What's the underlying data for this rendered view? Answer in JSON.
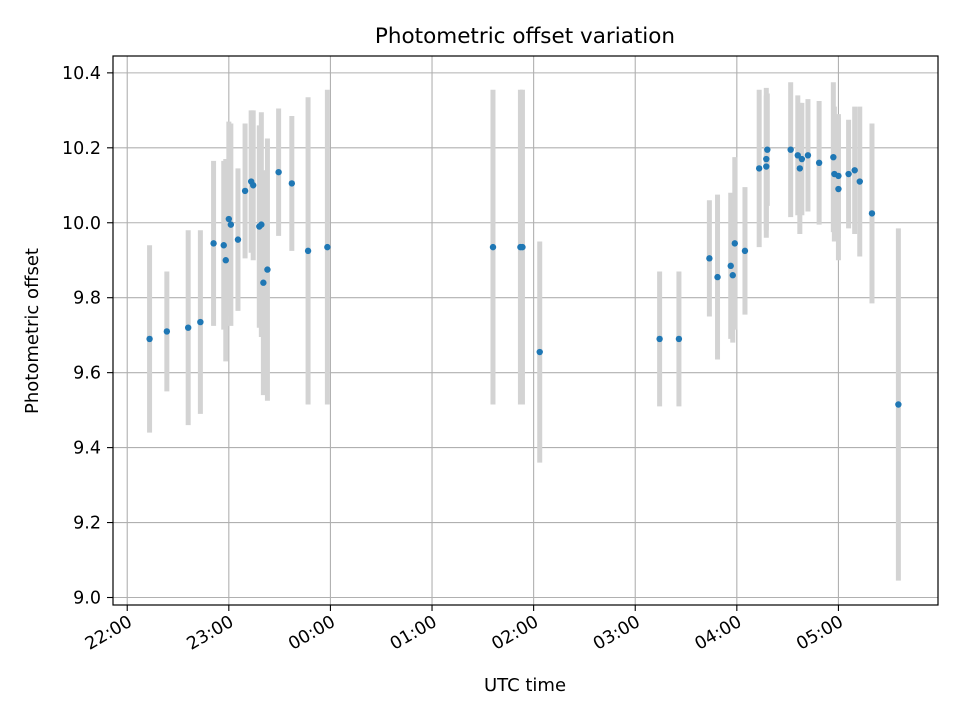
{
  "chart_data": {
    "type": "scatter",
    "title": "Photometric offset variation",
    "xlabel": "UTC time",
    "ylabel": "Photometric offset",
    "x_unit": "hours since 00:00 UTC (negative = previous day)",
    "xlim": [
      -2.14,
      5.98
    ],
    "ylim": [
      8.98,
      10.445
    ],
    "grid": true,
    "x_ticks": [
      {
        "value": -2,
        "label": "22:00"
      },
      {
        "value": -1,
        "label": "23:00"
      },
      {
        "value": 0,
        "label": "00:00"
      },
      {
        "value": 1,
        "label": "01:00"
      },
      {
        "value": 2,
        "label": "02:00"
      },
      {
        "value": 3,
        "label": "03:00"
      },
      {
        "value": 4,
        "label": "04:00"
      },
      {
        "value": 5,
        "label": "05:00"
      }
    ],
    "y_ticks": [
      {
        "value": 9.0,
        "label": "9.0"
      },
      {
        "value": 9.2,
        "label": "9.2"
      },
      {
        "value": 9.4,
        "label": "9.4"
      },
      {
        "value": 9.6,
        "label": "9.6"
      },
      {
        "value": 9.8,
        "label": "9.8"
      },
      {
        "value": 10.0,
        "label": "10.0"
      },
      {
        "value": 10.2,
        "label": "10.2"
      },
      {
        "value": 10.4,
        "label": "10.4"
      }
    ],
    "colors": {
      "point": "#1f77b4",
      "errorbar": "#d3d3d3",
      "grid": "#b0b0b0"
    },
    "points": [
      {
        "x": -1.78,
        "y": 9.69,
        "err": 0.25
      },
      {
        "x": -1.61,
        "y": 9.71,
        "err": 0.16
      },
      {
        "x": -1.4,
        "y": 9.72,
        "err": 0.26
      },
      {
        "x": -1.28,
        "y": 9.735,
        "err": 0.245
      },
      {
        "x": -1.15,
        "y": 9.945,
        "err": 0.22
      },
      {
        "x": -1.05,
        "y": 9.94,
        "err": 0.225
      },
      {
        "x": -1.03,
        "y": 9.9,
        "err": 0.27
      },
      {
        "x": -1.0,
        "y": 10.01,
        "err": 0.26
      },
      {
        "x": -0.98,
        "y": 9.995,
        "err": 0.27
      },
      {
        "x": -0.91,
        "y": 9.955,
        "err": 0.19
      },
      {
        "x": -0.84,
        "y": 10.085,
        "err": 0.18
      },
      {
        "x": -0.78,
        "y": 10.11,
        "err": 0.19
      },
      {
        "x": -0.76,
        "y": 10.1,
        "err": 0.2
      },
      {
        "x": -0.7,
        "y": 9.99,
        "err": 0.27
      },
      {
        "x": -0.68,
        "y": 9.995,
        "err": 0.3
      },
      {
        "x": -0.66,
        "y": 9.84,
        "err": 0.3
      },
      {
        "x": -0.62,
        "y": 9.875,
        "err": 0.35
      },
      {
        "x": -0.51,
        "y": 10.135,
        "err": 0.17
      },
      {
        "x": -0.38,
        "y": 10.105,
        "err": 0.18
      },
      {
        "x": -0.22,
        "y": 9.925,
        "err": 0.41
      },
      {
        "x": -0.03,
        "y": 9.935,
        "err": 0.42
      },
      {
        "x": 1.6,
        "y": 9.935,
        "err": 0.42
      },
      {
        "x": 1.87,
        "y": 9.935,
        "err": 0.42
      },
      {
        "x": 1.89,
        "y": 9.935,
        "err": 0.42
      },
      {
        "x": 2.06,
        "y": 9.655,
        "err": 0.295
      },
      {
        "x": 3.24,
        "y": 9.69,
        "err": 0.18
      },
      {
        "x": 3.43,
        "y": 9.69,
        "err": 0.18
      },
      {
        "x": 3.73,
        "y": 9.905,
        "err": 0.155
      },
      {
        "x": 3.81,
        "y": 9.855,
        "err": 0.22
      },
      {
        "x": 3.94,
        "y": 9.885,
        "err": 0.195
      },
      {
        "x": 3.96,
        "y": 9.86,
        "err": 0.18
      },
      {
        "x": 3.98,
        "y": 9.945,
        "err": 0.23
      },
      {
        "x": 4.08,
        "y": 9.925,
        "err": 0.17
      },
      {
        "x": 4.22,
        "y": 10.145,
        "err": 0.21
      },
      {
        "x": 4.29,
        "y": 10.15,
        "err": 0.19
      },
      {
        "x": 4.29,
        "y": 10.17,
        "err": 0.19
      },
      {
        "x": 4.3,
        "y": 10.195,
        "err": 0.15
      },
      {
        "x": 4.53,
        "y": 10.195,
        "err": 0.18
      },
      {
        "x": 4.6,
        "y": 10.18,
        "err": 0.16
      },
      {
        "x": 4.62,
        "y": 10.145,
        "err": 0.175
      },
      {
        "x": 4.64,
        "y": 10.17,
        "err": 0.15
      },
      {
        "x": 4.7,
        "y": 10.18,
        "err": 0.15
      },
      {
        "x": 4.81,
        "y": 10.16,
        "err": 0.165
      },
      {
        "x": 4.95,
        "y": 10.175,
        "err": 0.2
      },
      {
        "x": 4.96,
        "y": 10.13,
        "err": 0.18
      },
      {
        "x": 5.0,
        "y": 10.125,
        "err": 0.165
      },
      {
        "x": 5.0,
        "y": 10.09,
        "err": 0.19
      },
      {
        "x": 5.1,
        "y": 10.13,
        "err": 0.145
      },
      {
        "x": 5.16,
        "y": 10.14,
        "err": 0.17
      },
      {
        "x": 5.21,
        "y": 10.11,
        "err": 0.2
      },
      {
        "x": 5.33,
        "y": 10.025,
        "err": 0.24
      },
      {
        "x": 5.59,
        "y": 9.515,
        "err": 0.47
      }
    ]
  }
}
